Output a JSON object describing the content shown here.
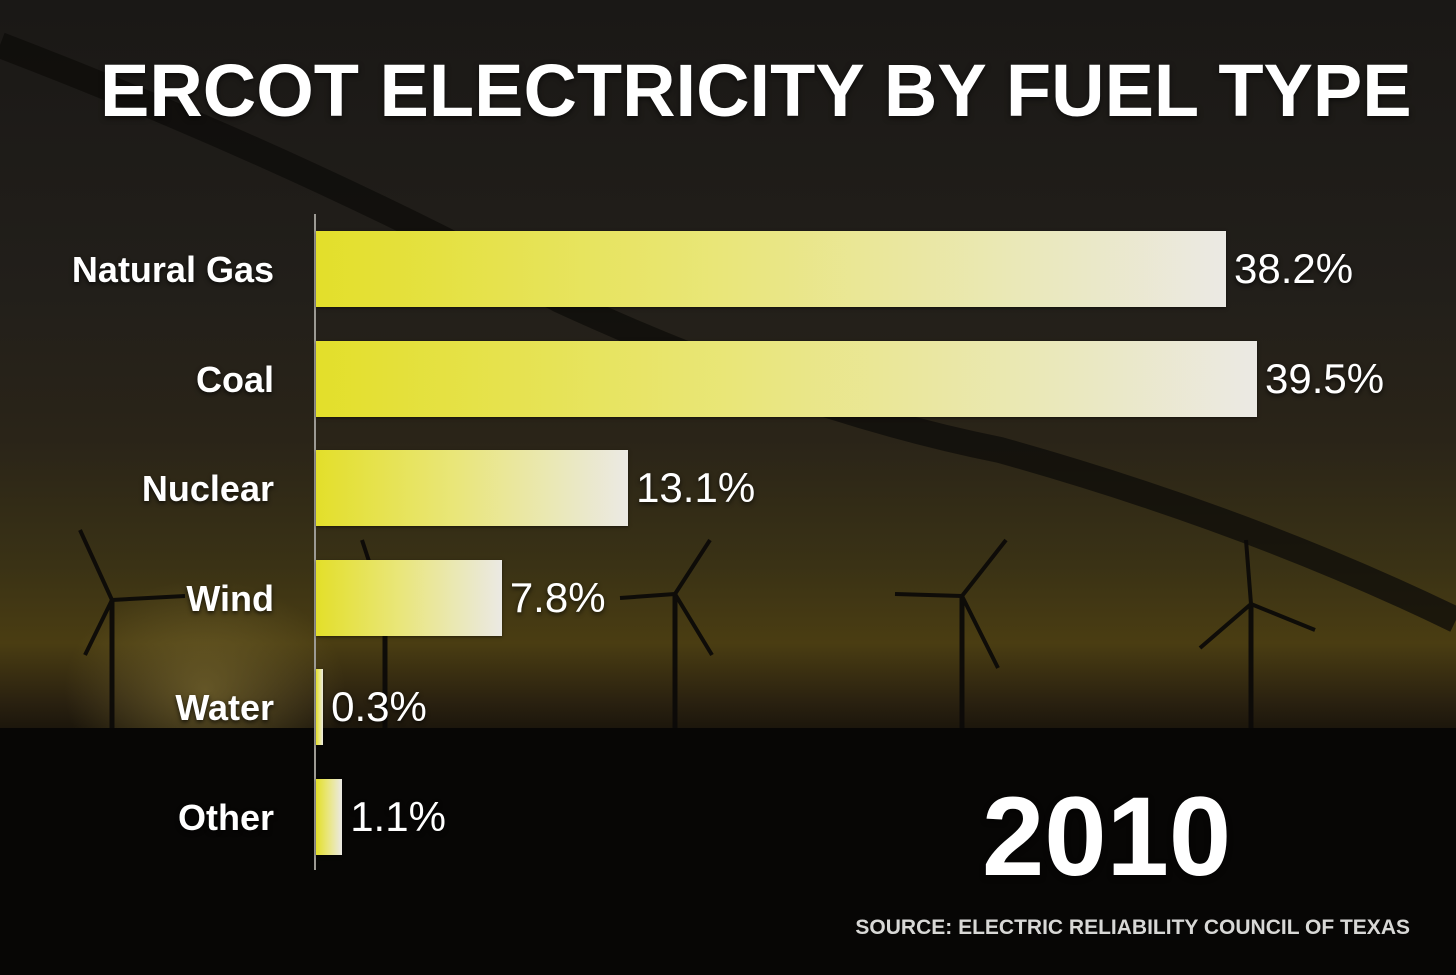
{
  "title": "ERCOT ELECTRICITY BY FUEL TYPE",
  "year": "2010",
  "source": "SOURCE: ELECTRIC RELIABILITY COUNCIL OF TEXAS",
  "chart_data": {
    "type": "bar",
    "orientation": "horizontal",
    "title": "ERCOT ELECTRICITY BY FUEL TYPE",
    "categories": [
      "Natural Gas",
      "Coal",
      "Nuclear",
      "Wind",
      "Water",
      "Other"
    ],
    "values": [
      38.2,
      39.5,
      13.1,
      7.8,
      0.3,
      1.1
    ],
    "value_labels": [
      "38.2%",
      "39.5%",
      "13.1%",
      "7.8%",
      "0.3%",
      "1.1%"
    ],
    "unit": "%",
    "xlim": [
      0,
      39.5
    ],
    "grid": false,
    "legend": "none",
    "colors": {
      "bar_start": "#e3df2a",
      "bar_end": "#ebe9e4"
    }
  }
}
